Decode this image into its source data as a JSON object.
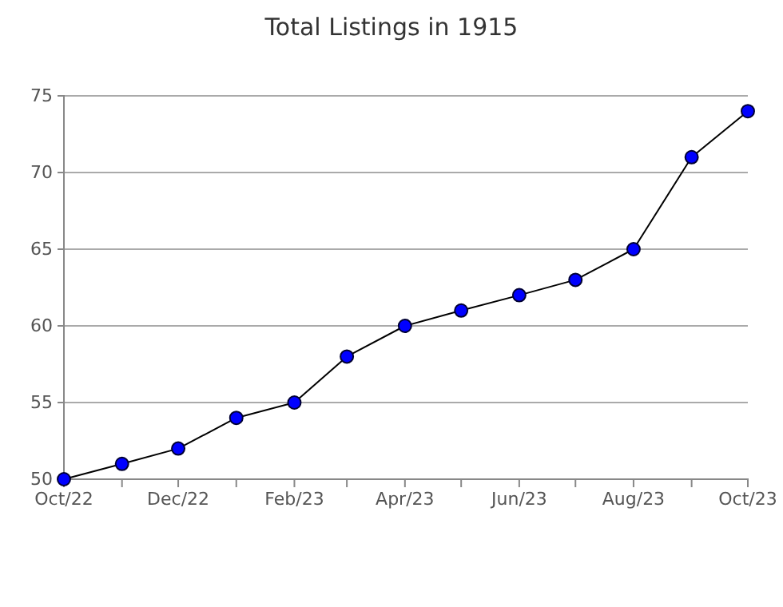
{
  "chart_data": {
    "type": "line",
    "title": "Total Listings in 1915",
    "x": [
      "2022-10",
      "2022-11",
      "2022-12",
      "2023-01",
      "2023-02",
      "2023-03",
      "2023-04",
      "2023-05",
      "2023-06",
      "2023-07",
      "2023-08",
      "2023-09",
      "2023-10"
    ],
    "series": [
      {
        "color": "#0000ff",
        "values": [
          50,
          51,
          52,
          54,
          55,
          58,
          60,
          61,
          62,
          63,
          65,
          71,
          74
        ]
      }
    ],
    "xlim": [
      "2022-10",
      "2023-10"
    ],
    "xticks": [
      {
        "value": "2022-10",
        "label": "Oct/22"
      },
      {
        "value": "2022-11",
        "label": null
      },
      {
        "value": "2022-12",
        "label": "Dec/22"
      },
      {
        "value": "2023-01",
        "label": null
      },
      {
        "value": "2023-02",
        "label": "Feb/23"
      },
      {
        "value": "2023-03",
        "label": null
      },
      {
        "value": "2023-04",
        "label": "Apr/23"
      },
      {
        "value": "2023-05",
        "label": null
      },
      {
        "value": "2023-06",
        "label": "Jun/23"
      },
      {
        "value": "2023-07",
        "label": null
      },
      {
        "value": "2023-08",
        "label": "Aug/23"
      },
      {
        "value": "2023-09",
        "label": null
      },
      {
        "value": "2023-10",
        "label": "Oct/23"
      }
    ],
    "ylim": [
      50,
      75
    ],
    "yticks": [
      50,
      55,
      60,
      65,
      70,
      75
    ],
    "grid": "y",
    "marker": "circle",
    "line_style": "solid"
  }
}
